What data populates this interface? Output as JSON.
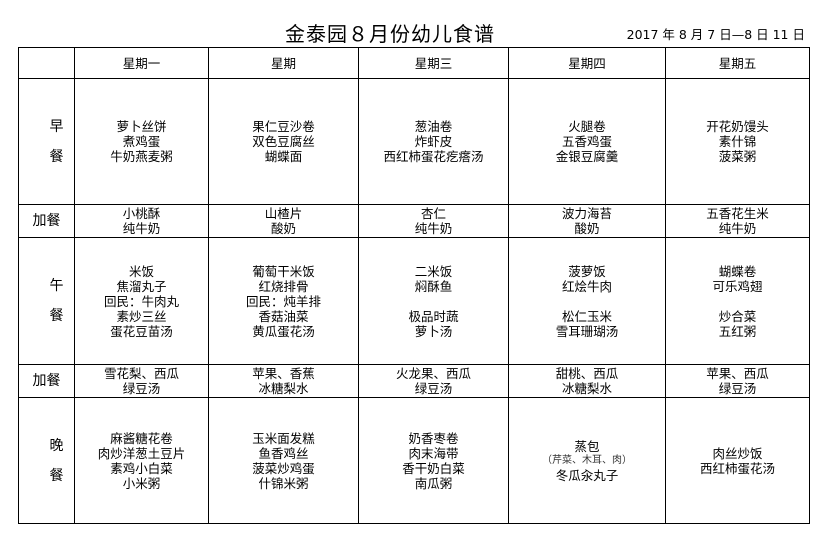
{
  "title": "金泰园８月份幼儿食谱",
  "date_range": "2017 年 8 月 7 日—8 日 11 日",
  "days": [
    "星期一",
    "星期",
    "星期三",
    "星期四",
    "星期五"
  ],
  "meals": [
    {
      "label": [
        "早",
        "餐"
      ],
      "key": "breakfast",
      "cells": [
        [
          "萝卜丝饼",
          "煮鸡蛋",
          "牛奶燕麦粥"
        ],
        [
          "果仁豆沙卷",
          "双色豆腐丝",
          "蝴蝶面"
        ],
        [
          "葱油卷",
          "炸虾皮",
          "西红柿蛋花疙瘩汤"
        ],
        [
          "火腿卷",
          "五香鸡蛋",
          "金银豆腐羹"
        ],
        [
          "开花奶馒头",
          "素什锦",
          "菠菜粥"
        ]
      ]
    },
    {
      "label": [
        "加餐"
      ],
      "key": "morning-snack",
      "cells": [
        [
          "小桃酥",
          "纯牛奶"
        ],
        [
          "山楂片",
          "酸奶"
        ],
        [
          "杏仁",
          "纯牛奶"
        ],
        [
          "波力海苔",
          "酸奶"
        ],
        [
          "五香花生米",
          "纯牛奶"
        ]
      ]
    },
    {
      "label": [
        "午",
        "餐"
      ],
      "key": "lunch",
      "cells": [
        [
          "米饭",
          "焦溜丸子",
          "回民：牛肉丸",
          "素炒三丝",
          "蛋花豆苗汤"
        ],
        [
          "葡萄干米饭",
          "红烧排骨",
          "回民：炖羊排",
          "香菇油菜",
          "黄瓜蛋花汤"
        ],
        [
          "二米饭",
          "焖酥鱼",
          "",
          "极品时蔬",
          "萝卜汤"
        ],
        [
          "菠萝饭",
          "红烩牛肉",
          "",
          "松仁玉米",
          "雪耳珊瑚汤"
        ],
        [
          "蝴蝶卷",
          "可乐鸡翅",
          "",
          "炒合菜",
          "五红粥"
        ]
      ]
    },
    {
      "label": [
        "加餐"
      ],
      "key": "afternoon-snack",
      "cells": [
        [
          "雪花梨、西瓜",
          "绿豆汤"
        ],
        [
          "苹果、香蕉",
          "冰糖梨水"
        ],
        [
          "火龙果、西瓜",
          "绿豆汤"
        ],
        [
          "甜桃、西瓜",
          "冰糖梨水"
        ],
        [
          "苹果、西瓜",
          "绿豆汤"
        ]
      ]
    },
    {
      "label": [
        "晚",
        "餐"
      ],
      "key": "dinner",
      "cells": [
        [
          "麻酱糖花卷",
          "肉炒洋葱土豆片",
          "素鸡小白菜",
          "小米粥"
        ],
        [
          "玉米面发糕",
          "鱼香鸡丝",
          "菠菜炒鸡蛋",
          "什锦米粥"
        ],
        [
          "奶香枣卷",
          "肉末海带",
          "香干奶白菜",
          "南瓜粥"
        ],
        [
          "蒸包",
          "（芹菜、木耳、肉）",
          "冬瓜汆丸子"
        ],
        [
          "肉丝炒饭",
          "西红柿蛋花汤"
        ]
      ]
    }
  ]
}
